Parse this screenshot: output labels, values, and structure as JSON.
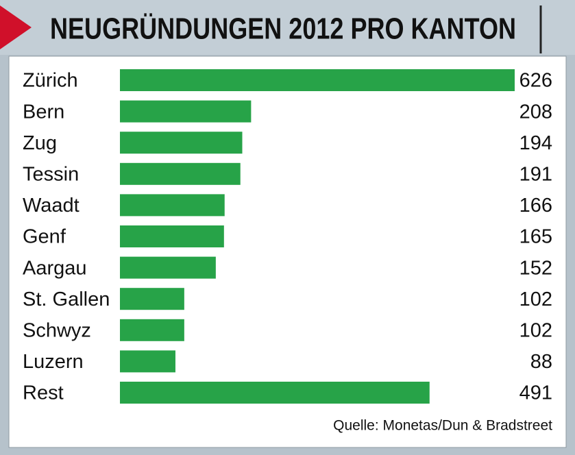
{
  "chart_data": {
    "type": "bar",
    "orientation": "horizontal",
    "title": "NEUGRÜNDUNGEN 2012 PRO KANTON",
    "categories": [
      "Zürich",
      "Bern",
      "Zug",
      "Tessin",
      "Waadt",
      "Genf",
      "Aargau",
      "St. Gallen",
      "Schwyz",
      "Luzern",
      "Rest"
    ],
    "values": [
      626,
      208,
      194,
      191,
      166,
      165,
      152,
      102,
      102,
      88,
      491
    ],
    "color": "#27a348",
    "source": "Quelle: Monetas/Dun & Bradstreet"
  }
}
